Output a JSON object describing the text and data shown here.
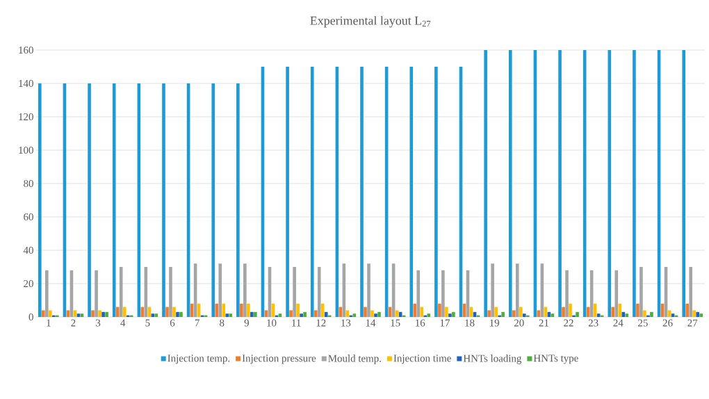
{
  "chart_data": {
    "type": "bar",
    "title": "Experimental layout L$_{27}$",
    "categories": [
      "1",
      "2",
      "3",
      "4",
      "5",
      "6",
      "7",
      "8",
      "9",
      "10",
      "11",
      "12",
      "13",
      "14",
      "15",
      "16",
      "17",
      "18",
      "19",
      "20",
      "21",
      "22",
      "23",
      "24",
      "25",
      "26",
      "27"
    ],
    "series": [
      {
        "name": "Injection temp.",
        "color": "#1e9ad6",
        "values": [
          140,
          140,
          140,
          140,
          140,
          140,
          140,
          140,
          140,
          150,
          150,
          150,
          150,
          150,
          150,
          150,
          150,
          150,
          160,
          160,
          160,
          160,
          160,
          160,
          160,
          160,
          160
        ]
      },
      {
        "name": "Injection pressure",
        "color": "#ed7d31",
        "values": [
          4,
          4,
          4,
          6,
          6,
          6,
          8,
          8,
          8,
          4,
          4,
          4,
          6,
          6,
          6,
          8,
          8,
          8,
          4,
          4,
          4,
          6,
          6,
          6,
          8,
          8,
          8
        ]
      },
      {
        "name": "Mould temp.",
        "color": "#a5a5a5",
        "values": [
          28,
          28,
          28,
          30,
          30,
          30,
          32,
          32,
          32,
          30,
          30,
          30,
          32,
          32,
          32,
          28,
          28,
          28,
          32,
          32,
          32,
          28,
          28,
          28,
          30,
          30,
          30
        ]
      },
      {
        "name": "Injection time",
        "color": "#ffc000",
        "values": [
          4,
          4,
          4,
          6,
          6,
          6,
          8,
          8,
          8,
          8,
          8,
          8,
          4,
          4,
          4,
          6,
          6,
          6,
          6,
          6,
          6,
          8,
          8,
          8,
          4,
          4,
          4
        ]
      },
      {
        "name": "HNTs loading",
        "color": "#1f62c1",
        "values": [
          1,
          2,
          3,
          1,
          2,
          3,
          1,
          2,
          3,
          1,
          2,
          3,
          1,
          2,
          3,
          1,
          2,
          3,
          1,
          2,
          3,
          1,
          2,
          3,
          1,
          2,
          3
        ]
      },
      {
        "name": "HNTs type",
        "color": "#4caf3c",
        "values": [
          1,
          2,
          3,
          1,
          2,
          3,
          1,
          2,
          3,
          2,
          3,
          1,
          2,
          3,
          1,
          2,
          3,
          1,
          3,
          1,
          2,
          3,
          1,
          2,
          3,
          1,
          2
        ]
      }
    ],
    "ylim": [
      0,
      160
    ],
    "yticks": [
      0,
      20,
      40,
      60,
      80,
      100,
      120,
      140,
      160
    ],
    "grid": "y",
    "legend": "bottom"
  }
}
